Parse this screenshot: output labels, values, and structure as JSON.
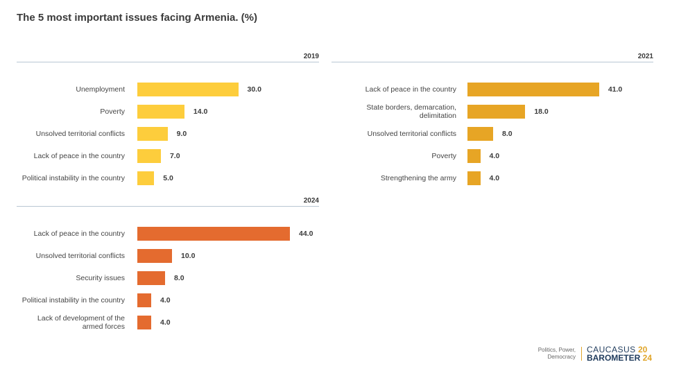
{
  "title": "The 5 most important issues facing Armenia. (%)",
  "chart_data": [
    {
      "type": "bar",
      "year": "2019",
      "color": "#fdcd3c",
      "categories": [
        "Unemployment",
        "Poverty",
        "Unsolved territorial conflicts",
        "Lack of peace in the country",
        "Political instability in the country"
      ],
      "values": [
        30.0,
        14.0,
        9.0,
        7.0,
        5.0
      ],
      "value_labels": [
        "30.0",
        "14.0",
        "9.0",
        "7.0",
        "5.0"
      ]
    },
    {
      "type": "bar",
      "year": "2021",
      "color": "#e7a525",
      "categories": [
        "Lack of peace in the country",
        "State borders, demarcation, delimitation",
        "Unsolved territorial conflicts",
        "Poverty",
        "Strengthening the army"
      ],
      "values": [
        41.0,
        18.0,
        8.0,
        4.0,
        4.0
      ],
      "value_labels": [
        "41.0",
        "18.0",
        "8.0",
        "4.0",
        "4.0"
      ]
    },
    {
      "type": "bar",
      "year": "2024",
      "color": "#e46b2f",
      "categories": [
        "Lack of peace in the country",
        "Unsolved territorial conflicts",
        "Security issues",
        "Political instability in the country",
        "Lack of development of the armed forces"
      ],
      "values": [
        44.0,
        10.0,
        8.0,
        4.0,
        4.0
      ],
      "value_labels": [
        "44.0",
        "10.0",
        "8.0",
        "4.0",
        "4.0"
      ]
    }
  ],
  "footer": {
    "tagline_1": "Politics, Power,",
    "tagline_2": "Democracy",
    "logo_1": "CAUCASUS",
    "logo_2": "BAROMETER",
    "logo_year_1": "20",
    "logo_year_2": "24"
  }
}
